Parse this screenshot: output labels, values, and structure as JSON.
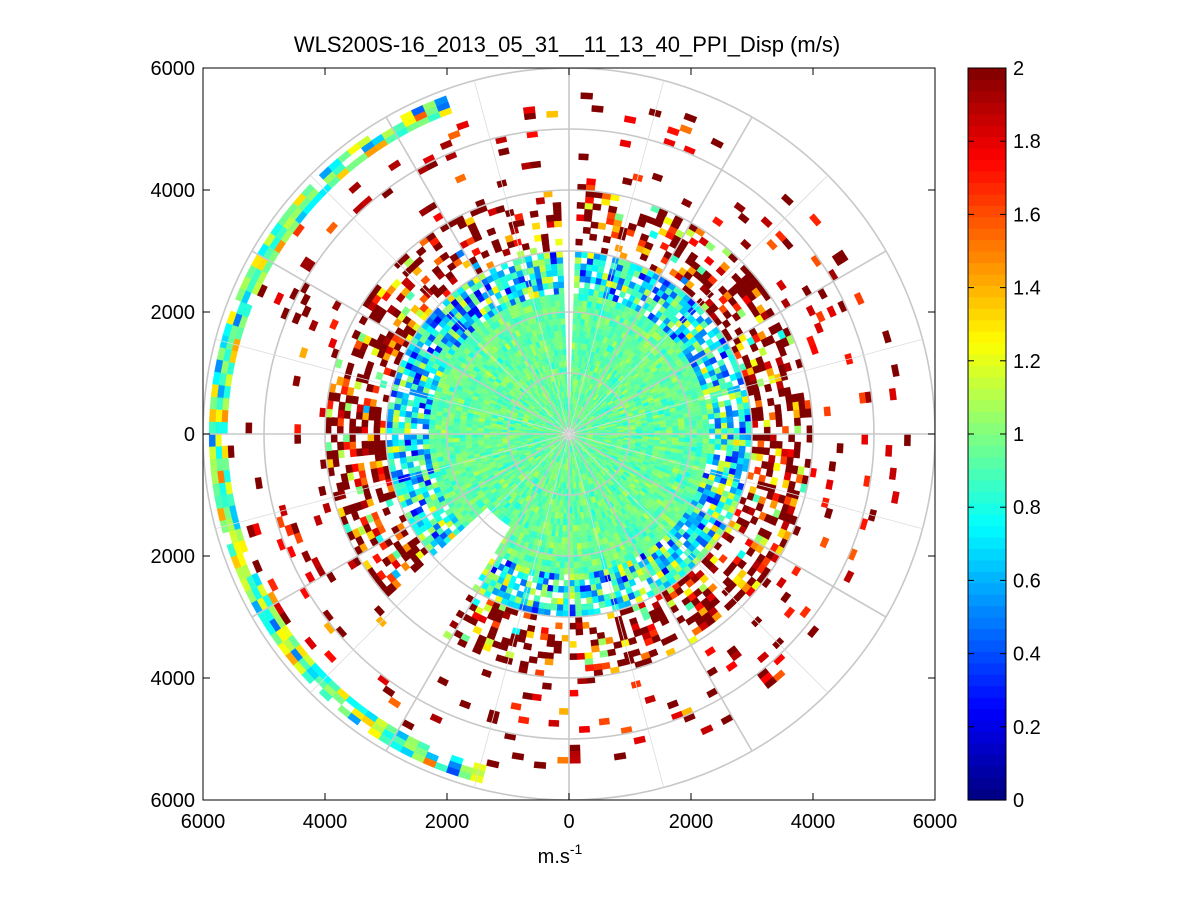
{
  "chart_data": {
    "type": "heatmap",
    "subtype": "polar-ppi",
    "title": "WLS200S-16_2013_05_31__11_13_40_PPI_Disp (m/s)",
    "xlabel_base": "m.s",
    "xlabel_exp": "-1",
    "ylabel": "",
    "xlim": [
      -6000,
      6000
    ],
    "ylim": [
      -6000,
      6000
    ],
    "x_ticks": [
      -6000,
      -4000,
      -2000,
      0,
      2000,
      4000,
      6000
    ],
    "x_tick_labels": [
      "6000",
      "4000",
      "2000",
      "0",
      "2000",
      "4000",
      "6000"
    ],
    "y_ticks": [
      -6000,
      -4000,
      -2000,
      0,
      2000,
      4000,
      6000
    ],
    "y_tick_labels": [
      "6000",
      "4000",
      "2000",
      "0",
      "2000",
      "4000",
      "6000"
    ],
    "range_rings_m": [
      1000,
      2000,
      3000,
      4000,
      5000,
      6000
    ],
    "radial_lines_deg": [
      0,
      30,
      60,
      90,
      120,
      150,
      180,
      210,
      240,
      270,
      300,
      330
    ],
    "radial_grid_deg": [
      15,
      45,
      75,
      105,
      135,
      165,
      195,
      225,
      255,
      285,
      315,
      345
    ],
    "range_gate_m": 100,
    "azimuth_step_deg": 2,
    "colorbar": {
      "min": 0,
      "max": 2,
      "ticks": [
        0,
        0.2,
        0.4,
        0.6,
        0.8,
        1,
        1.2,
        1.4,
        1.6,
        1.8,
        2
      ],
      "tick_labels": [
        "0",
        "0.2",
        "0.4",
        "0.6",
        "0.8",
        "1",
        "1.2",
        "1.4",
        "1.6",
        "1.8",
        "2"
      ],
      "colormap": "jet"
    },
    "regions": [
      {
        "name": "inner-core",
        "range_m": [
          100,
          2300
        ],
        "value_mean": 0.95,
        "value_spread": 0.12,
        "coverage": 1.0
      },
      {
        "name": "transition",
        "range_m": [
          2300,
          3000
        ],
        "value_mean": 0.85,
        "value_spread": 0.35,
        "coverage": 0.85
      },
      {
        "name": "outer-band",
        "range_m": [
          3000,
          4000
        ],
        "value_mean": 1.6,
        "value_spread": 0.7,
        "coverage": 0.55
      },
      {
        "name": "far-sparse",
        "range_m": [
          4000,
          5600
        ],
        "value_mean": 1.9,
        "value_spread": 0.4,
        "coverage": 0.08
      },
      {
        "name": "outer-rim-west",
        "range_m": [
          5650,
          5950
        ],
        "azimuth_deg": [
          195,
          340
        ],
        "value_mean": 1.0,
        "value_spread": 0.4,
        "coverage": 0.9
      }
    ],
    "gaps": [
      {
        "azimuth_deg": [
          358,
          2
        ],
        "range_m": [
          0,
          6000
        ]
      },
      {
        "azimuth_deg": [
          212,
          228
        ],
        "range_m": [
          1800,
          4200
        ]
      }
    ]
  }
}
